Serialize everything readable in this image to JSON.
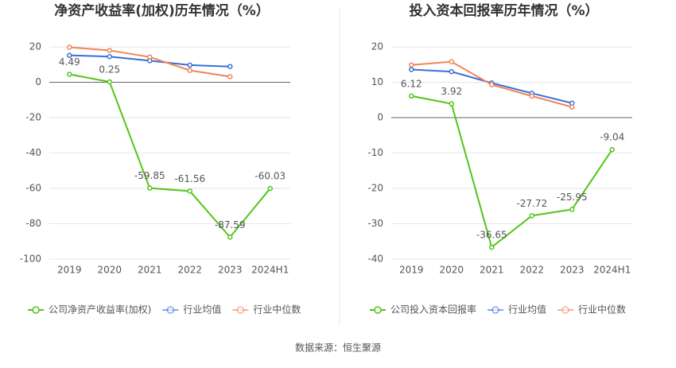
{
  "chart_data": [
    {
      "type": "line",
      "title": "净资产收益率(加权)历年情况（%）",
      "categories": [
        "2019",
        "2020",
        "2021",
        "2022",
        "2023",
        "2024H1"
      ],
      "series": [
        {
          "name": "公司净资产收益率(加权)",
          "color": "#52c41a",
          "values": [
            4.49,
            0.25,
            -59.85,
            -61.56,
            -87.59,
            -60.03
          ],
          "labels": true
        },
        {
          "name": "行业均值",
          "color": "#3a6fd8",
          "values": [
            15.2,
            14.5,
            12.2,
            9.7,
            8.9,
            null
          ]
        },
        {
          "name": "行业中位数",
          "color": "#f0845a",
          "values": [
            19.8,
            18.0,
            14.3,
            6.7,
            3.2,
            null
          ]
        }
      ],
      "ylim": [
        -100,
        20
      ],
      "yticks": [
        -100,
        -80,
        -60,
        -40,
        -20,
        0,
        20
      ],
      "grid": true,
      "legend": "bottom"
    },
    {
      "type": "line",
      "title": "投入资本回报率历年情况（%）",
      "categories": [
        "2019",
        "2020",
        "2021",
        "2022",
        "2023",
        "2024H1"
      ],
      "series": [
        {
          "name": "公司投入资本回报率",
          "color": "#52c41a",
          "values": [
            6.12,
            3.92,
            -36.65,
            -27.72,
            -25.95,
            -9.04
          ],
          "labels": true
        },
        {
          "name": "行业均值",
          "color": "#3a6fd8",
          "values": [
            13.6,
            13.0,
            9.8,
            6.9,
            4.1,
            null
          ]
        },
        {
          "name": "行业中位数",
          "color": "#f0845a",
          "values": [
            14.9,
            15.8,
            9.3,
            6.1,
            3.0,
            null
          ]
        }
      ],
      "ylim": [
        -40,
        20
      ],
      "yticks": [
        -40,
        -30,
        -20,
        -10,
        0,
        10,
        20
      ],
      "grid": true,
      "legend": "bottom"
    }
  ],
  "source": "数据来源：恒生聚源"
}
